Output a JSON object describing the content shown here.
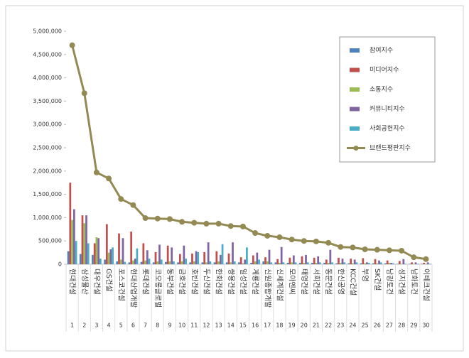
{
  "chart_data": {
    "type": "bar",
    "categories": [
      "현대건설",
      "삼성물산",
      "대우건설",
      "GS건설",
      "포스코건설",
      "현대산업개발",
      "롯데건설",
      "코오롱글로벌",
      "동부건설",
      "금호건설",
      "호반건설",
      "두산건설",
      "한화건설",
      "쌍용건설",
      "일성건설",
      "계룡건설",
      "신원종합개발",
      "신세계건설",
      "모아엔씨",
      "태영건설",
      "서희건설",
      "동문건설",
      "한신공영",
      "KCC건설",
      "부영",
      "SK건설",
      "남광토건",
      "성지건설",
      "남화토건",
      "이테크건설"
    ],
    "ranks": [
      1,
      2,
      3,
      4,
      5,
      6,
      7,
      8,
      9,
      10,
      11,
      12,
      13,
      14,
      15,
      16,
      17,
      18,
      19,
      20,
      21,
      22,
      23,
      24,
      25,
      26,
      27,
      28,
      29,
      30
    ],
    "ylim": [
      0,
      5000000
    ],
    "yticks": [
      0,
      {
        "value": 500000,
        "label": "500,000"
      },
      {
        "value": 1000000,
        "label": "1,000,000"
      },
      {
        "value": 1500000,
        "label": "1,500,000"
      },
      {
        "value": 2000000,
        "label": "2,000,000"
      },
      {
        "value": 2500000,
        "label": "2,500,000"
      },
      {
        "value": 3000000,
        "label": "3,000,000"
      },
      {
        "value": 3500000,
        "label": "3,500,000"
      },
      {
        "value": 4000000,
        "label": "4,000,000"
      },
      {
        "value": 4500000,
        "label": "4,500,000"
      },
      {
        "value": 5000000,
        "label": "5,000,000"
      }
    ],
    "grid": false,
    "legend": "upper right",
    "series": [
      {
        "name": "참여지수",
        "type": "bar",
        "color": "#4f81bd",
        "values": [
          280000,
          220000,
          200000,
          100000,
          60000,
          40000,
          50000,
          40000,
          50000,
          40000,
          40000,
          40000,
          40000,
          40000,
          40000,
          30000,
          60000,
          40000,
          30000,
          30000,
          30000,
          30000,
          20000,
          20000,
          20000,
          20000,
          20000,
          10000,
          10000,
          10000
        ]
      },
      {
        "name": "미디어지수",
        "type": "bar",
        "color": "#c0504d",
        "values": [
          1750000,
          1050000,
          450000,
          860000,
          660000,
          700000,
          450000,
          260000,
          400000,
          220000,
          230000,
          260000,
          280000,
          230000,
          150000,
          190000,
          150000,
          110000,
          140000,
          170000,
          140000,
          100000,
          140000,
          120000,
          130000,
          110000,
          80000,
          70000,
          40000,
          30000
        ]
      },
      {
        "name": "소통지수",
        "type": "bar",
        "color": "#9bbb59",
        "values": [
          950000,
          880000,
          580000,
          250000,
          100000,
          80000,
          80000,
          60000,
          60000,
          60000,
          60000,
          40000,
          60000,
          40000,
          20000,
          60000,
          60000,
          30000,
          40000,
          30000,
          30000,
          30000,
          30000,
          20000,
          20000,
          20000,
          30000,
          10000,
          10000,
          10000
        ]
      },
      {
        "name": "커뮤니티지수",
        "type": "bar",
        "color": "#8064a2",
        "values": [
          1180000,
          1050000,
          560000,
          320000,
          560000,
          120000,
          300000,
          420000,
          360000,
          400000,
          280000,
          470000,
          200000,
          470000,
          100000,
          250000,
          310000,
          370000,
          190000,
          200000,
          170000,
          310000,
          120000,
          100000,
          40000,
          80000,
          30000,
          110000,
          40000,
          40000
        ]
      },
      {
        "name": "사회공헌지수",
        "type": "bar",
        "color": "#4bacc6",
        "values": [
          500000,
          450000,
          120000,
          360000,
          50000,
          340000,
          120000,
          100000,
          60000,
          120000,
          260000,
          60000,
          430000,
          60000,
          360000,
          100000,
          40000,
          40000,
          40000,
          40000,
          40000,
          40000,
          40000,
          40000,
          30000,
          40000,
          20000,
          10000,
          10000,
          10000
        ]
      },
      {
        "name": "브랜드평판지수",
        "type": "line",
        "color": "#938953",
        "values": [
          4700000,
          3670000,
          1970000,
          1840000,
          1400000,
          1270000,
          990000,
          980000,
          970000,
          910000,
          890000,
          870000,
          870000,
          820000,
          810000,
          670000,
          610000,
          580000,
          530000,
          500000,
          490000,
          460000,
          370000,
          360000,
          320000,
          310000,
          300000,
          290000,
          150000,
          110000
        ]
      }
    ]
  }
}
